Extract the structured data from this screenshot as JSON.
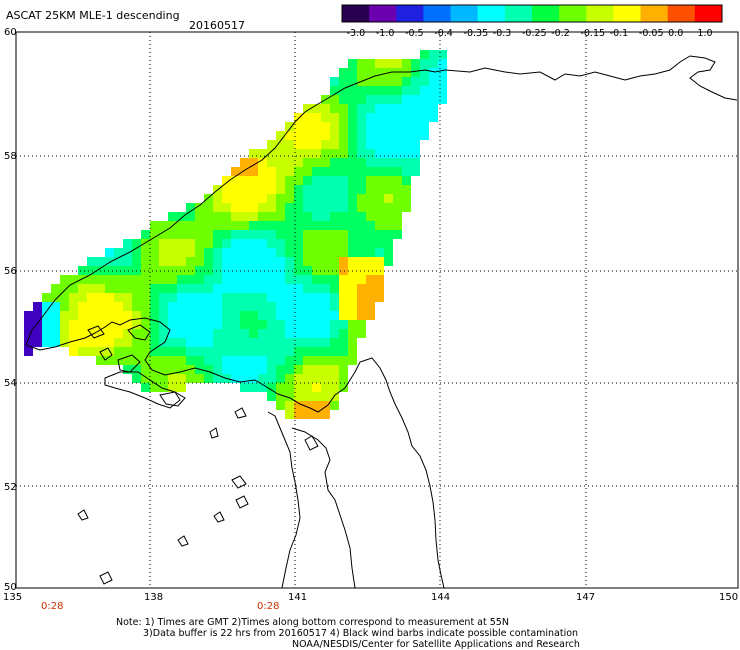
{
  "header": {
    "title": "ASCAT 25KM MLE-1 descending",
    "date": "20160517"
  },
  "colorbar": {
    "ticks": [
      "-3.0",
      "-1.0",
      "-0.5",
      "-0.4",
      "-0.35",
      "-0.3",
      "-0.25",
      "-0.2",
      "-0.15",
      "-0.1",
      "-0.05",
      "0.0",
      "1.0"
    ],
    "colors": [
      "#2a0050",
      "#6a00b0",
      "#2020e0",
      "#0070ff",
      "#00b8ff",
      "#00ffff",
      "#00ffb0",
      "#00ff40",
      "#70ff00",
      "#c8ff00",
      "#ffff00",
      "#ffb000",
      "#ff5000",
      "#ff0000"
    ]
  },
  "map": {
    "lat_labels": [
      "60",
      "58",
      "56",
      "54",
      "52",
      "50"
    ],
    "lon_labels": [
      "135",
      "138",
      "141",
      "144",
      "147",
      "150"
    ],
    "lat_range": [
      50,
      60
    ],
    "lon_range": [
      135,
      150
    ],
    "pass_times": [
      "0:28",
      "0:28"
    ]
  },
  "notes": {
    "line1": "Note: 1) Times are GMT 2)Times along bottom correspond to measurement at 55N",
    "line2": "3)Data buffer is 22 hrs from 20160517 4) Black wind barbs indicate possible contamination",
    "line3": "NOAA/NESDIS/Center for Satellite Applications and Research"
  }
}
